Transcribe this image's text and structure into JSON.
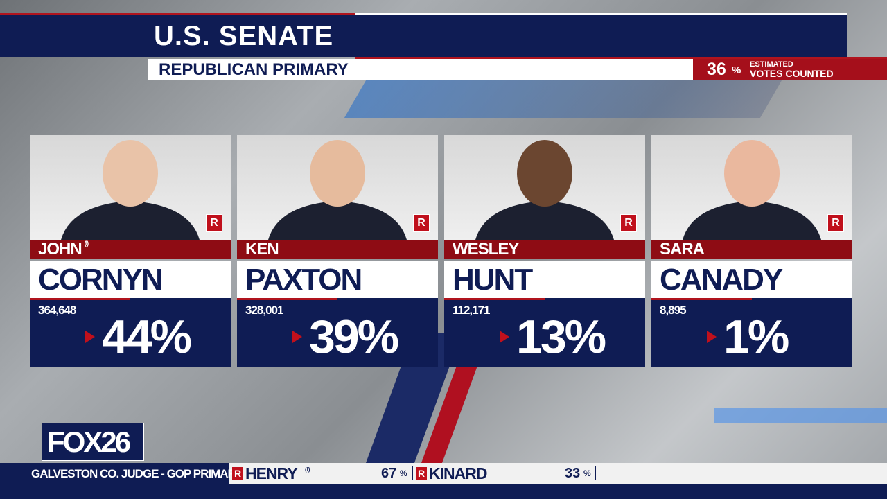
{
  "header": {
    "title": "U.S. SENATE",
    "subtitle": "REPUBLICAN PRIMARY",
    "votes_counted": {
      "percent": "36",
      "unit": "%",
      "label_line1": "ESTIMATED",
      "label_line2": "VOTES COUNTED"
    }
  },
  "candidates": [
    {
      "first_name": "JOHN",
      "incumbent": "(I)",
      "last_name": "CORNYN",
      "party": "R",
      "votes": "364,648",
      "percent": "44%"
    },
    {
      "first_name": "KEN",
      "last_name": "PAXTON",
      "party": "R",
      "votes": "328,001",
      "percent": "39%"
    },
    {
      "first_name": "WESLEY",
      "last_name": "HUNT",
      "party": "R",
      "votes": "112,171",
      "percent": "13%"
    },
    {
      "first_name": "SARA",
      "last_name": "CANADY",
      "party": "R",
      "votes": "8,895",
      "percent": "1%"
    }
  ],
  "logo": {
    "brand": "FOX",
    "channel": "26"
  },
  "ticker": {
    "race": "GALVESTON CO. JUDGE - GOP PRIMARY",
    "candidates": [
      {
        "party": "R",
        "name": "HENRY",
        "incumbent": "(I)",
        "percent": "67",
        "unit": "%"
      },
      {
        "party": "R",
        "name": "KINARD",
        "percent": "33",
        "unit": "%"
      }
    ]
  }
}
